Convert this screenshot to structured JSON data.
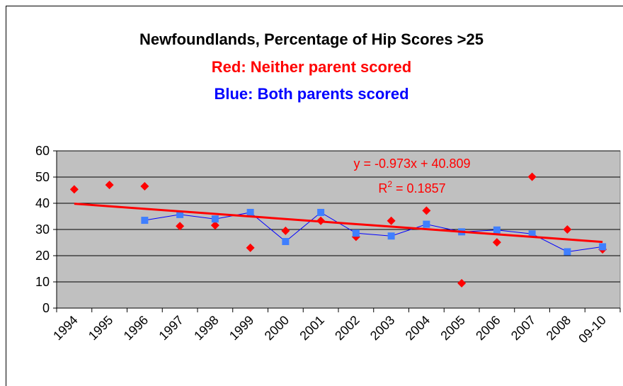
{
  "chart_data": {
    "type": "scatter-line",
    "title": "Newfoundlands, Percentage of Hip Scores >25",
    "subtitles": [
      {
        "text": "Red: Neither parent scored",
        "color": "#ff0000"
      },
      {
        "text": "Blue: Both parents scored",
        "color": "#0000ff"
      }
    ],
    "categories": [
      "1994",
      "1995",
      "1996",
      "1997",
      "1998",
      "1999",
      "2000",
      "2001",
      "2002",
      "2003",
      "2004",
      "2005",
      "2006",
      "2007",
      "2008",
      "09-10"
    ],
    "series": [
      {
        "color": "#ff0000",
        "marker": "diamond",
        "show_line": false,
        "values": [
          45.3,
          47,
          46.5,
          31.3,
          31.6,
          23,
          29.5,
          33.3,
          27.2,
          33.3,
          37.2,
          9.5,
          25.1,
          50.1,
          30,
          22.4
        ]
      },
      {
        "color": "#0000ff",
        "marker_color": "#3f7fff",
        "marker": "square",
        "show_line": true,
        "values": [
          null,
          null,
          33.5,
          35.7,
          34,
          36.5,
          25.4,
          36.5,
          28.6,
          27.5,
          32,
          29.1,
          29.8,
          28.3,
          21.5,
          23.4
        ]
      }
    ],
    "trendline": {
      "color": "#ff0000",
      "slope": -0.973,
      "intercept": 40.809,
      "label": "y = -0.973x + 40.809",
      "r2_label": [
        "R",
        "2",
        " = 0.1857"
      ]
    },
    "ylim": [
      0,
      60
    ],
    "yticks": [
      0,
      10,
      20,
      30,
      40,
      50,
      60
    ],
    "grid": true,
    "plot_background": "#c0c0c0"
  }
}
